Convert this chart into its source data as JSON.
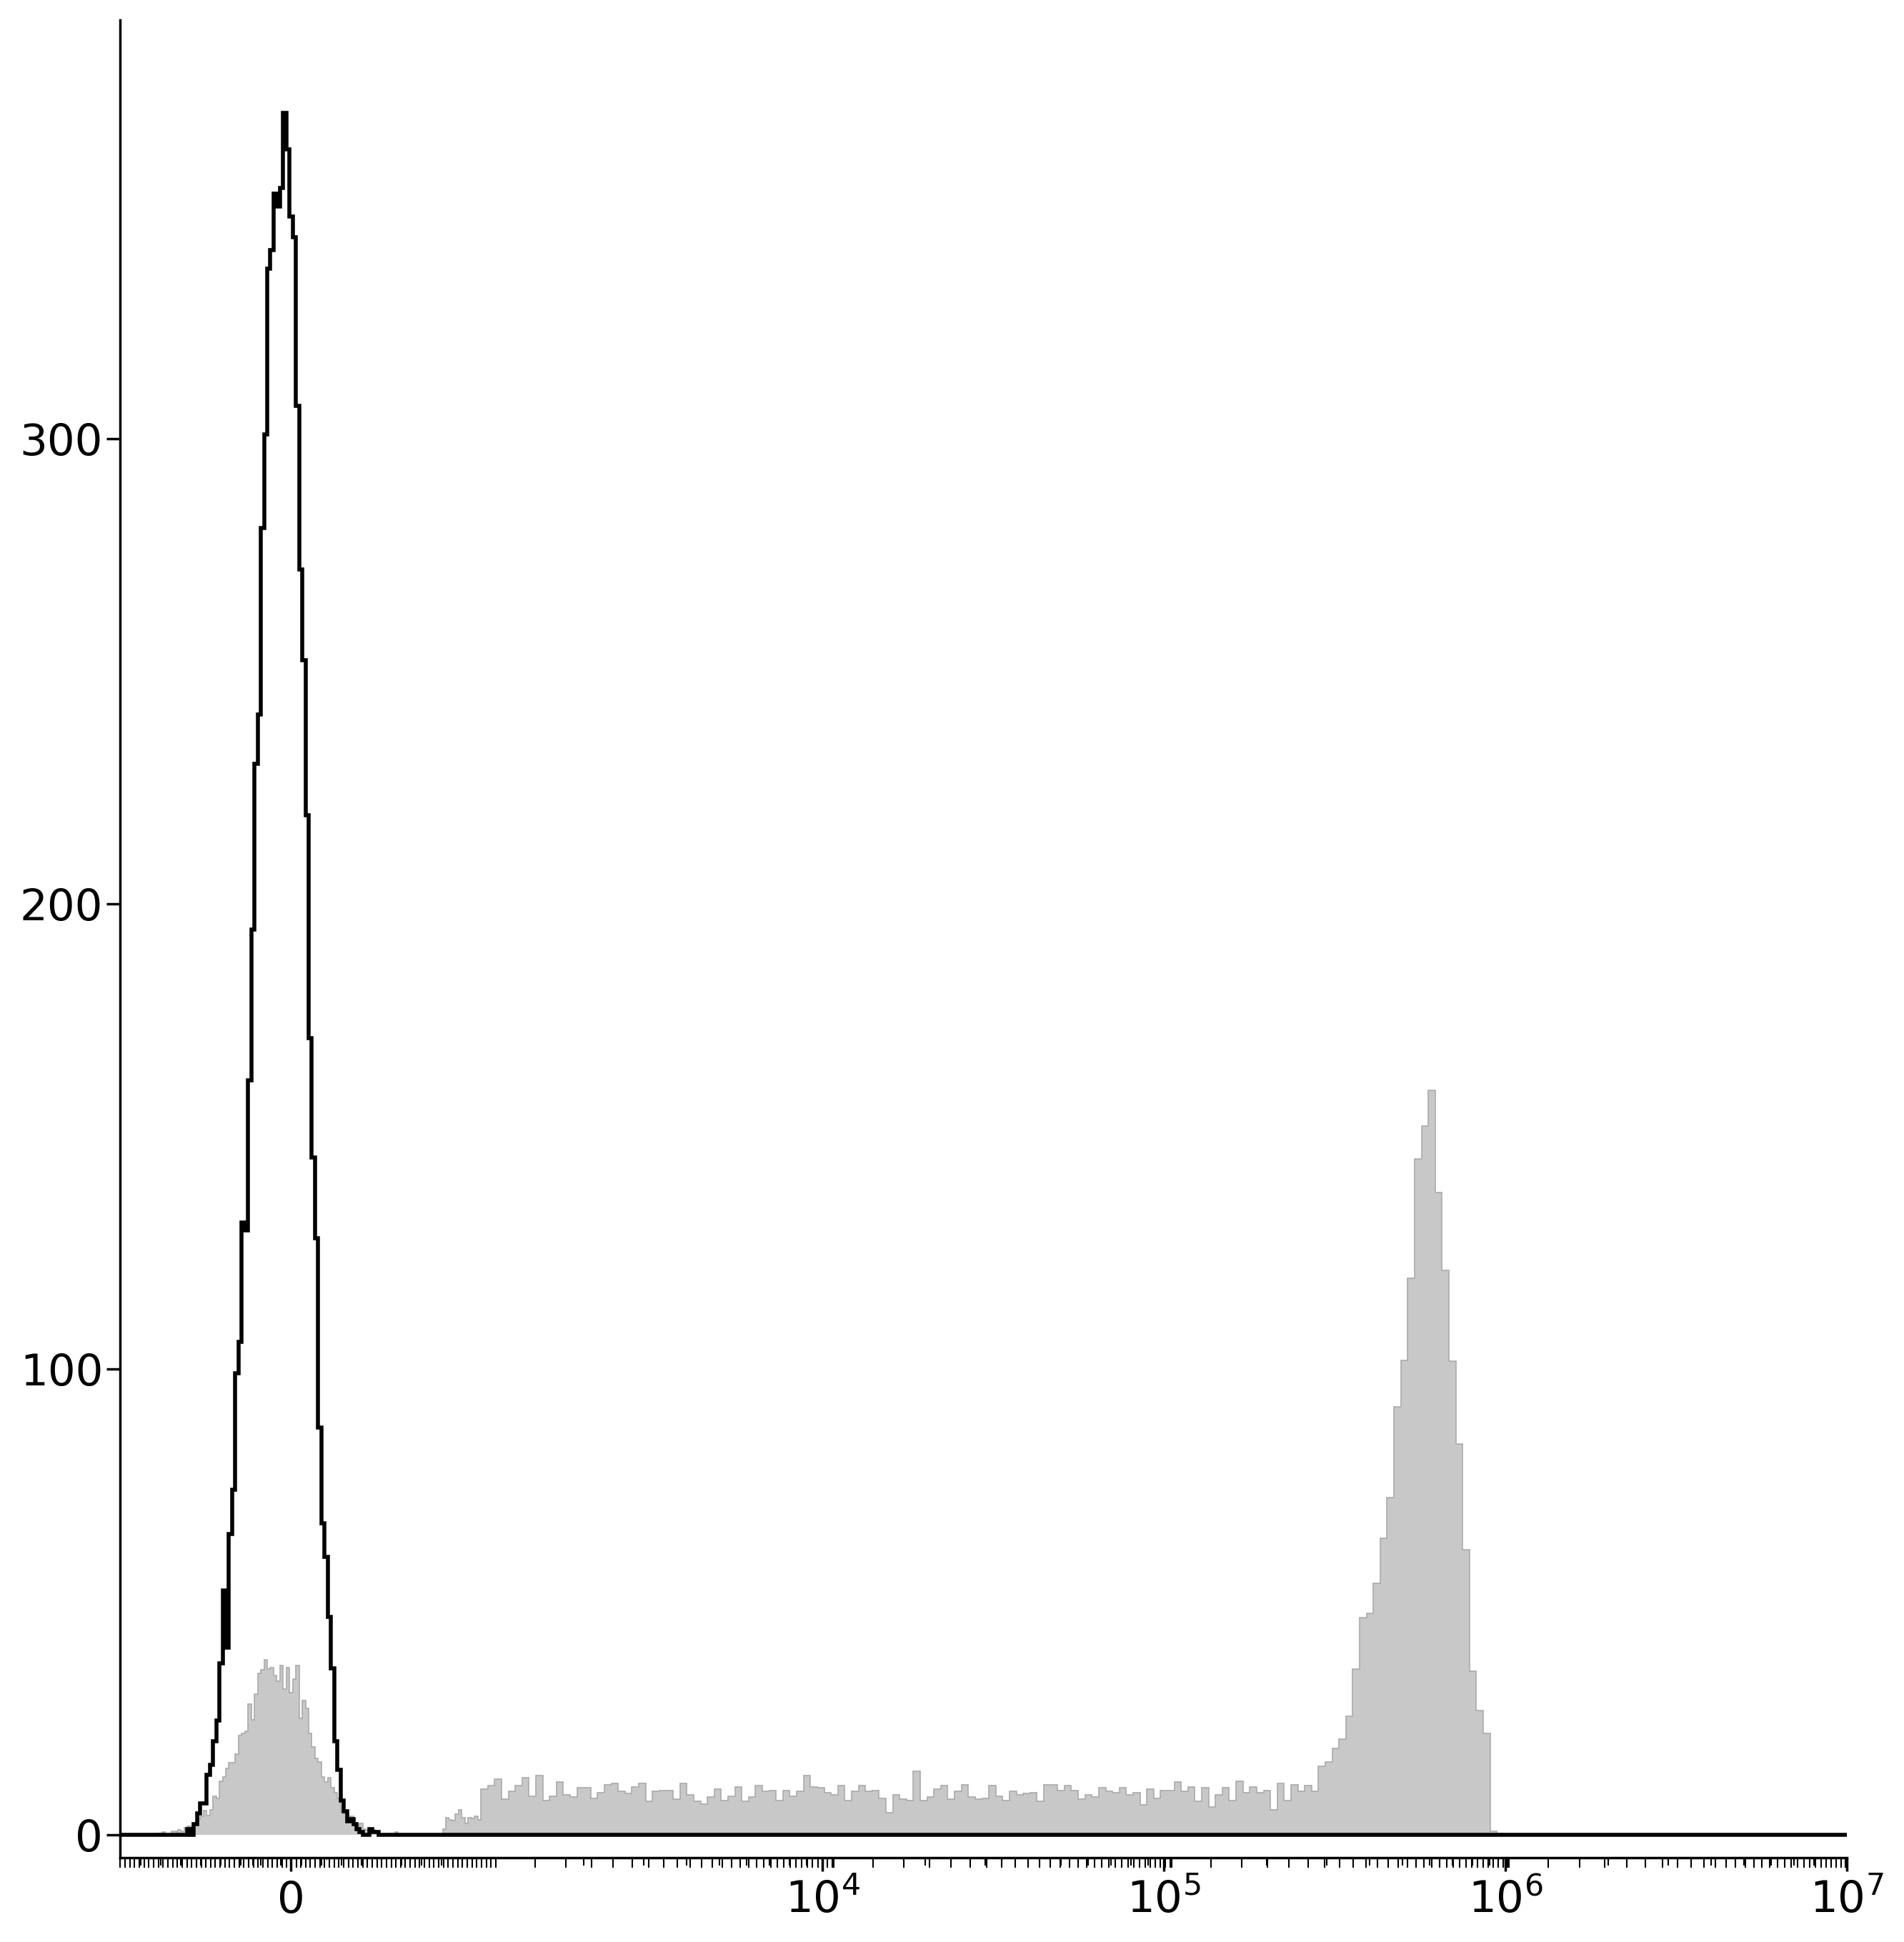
{
  "background_color": "#ffffff",
  "line_color_unstained": "#000000",
  "fill_color_stained": "#c8c8c8",
  "fill_edge_color_stained": "#aaaaaa",
  "linewidth_unstained": 4.0,
  "linewidth_stained": 1.2,
  "linthresh": 1000,
  "linscale": 0.5,
  "yticks": [
    0,
    100,
    200,
    300
  ],
  "ylim": [
    -5,
    390
  ],
  "xlim_low": -600,
  "xlim_high": 10000000.0,
  "major_xticks": [
    0,
    10000.0,
    100000.0,
    1000000.0,
    10000000.0
  ],
  "major_xtick_labels": [
    "0",
    "$10^4$",
    "$10^5$",
    "$10^6$",
    "$10^7$"
  ],
  "tick_labelsize": 44,
  "spine_linewidth": 2.5
}
